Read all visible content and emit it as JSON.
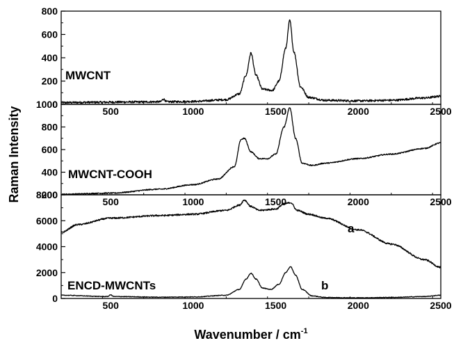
{
  "chart_data": {
    "type": "line",
    "xlabel": "Wavenumber / cm",
    "xlabel_superscript": "-1",
    "ylabel": "Raman Intensity",
    "xlim": [
      200,
      2500
    ],
    "x_ticks": [
      500,
      1000,
      1500,
      2000,
      2500
    ],
    "x_tick_labels": [
      "500",
      "1000",
      "1500",
      "2000",
      "2500"
    ],
    "grid": false,
    "panels": [
      {
        "label": "MWCNT",
        "ylim": [
          0,
          800
        ],
        "y_ticks": [
          0,
          200,
          400,
          600,
          800
        ],
        "y_tick_labels": [
          "0",
          "200",
          "400",
          "600",
          "800"
        ],
        "series": [
          {
            "x": [
              200,
              400,
              600,
              800,
              820,
              840,
              1000,
              1200,
              1280,
              1320,
              1350,
              1380,
              1420,
              1480,
              1520,
              1560,
              1585,
              1610,
              1650,
              1700,
              1800,
              2000,
              2200,
              2400,
              2500
            ],
            "values": [
              15,
              18,
              20,
              22,
              45,
              22,
              25,
              40,
              90,
              250,
              440,
              250,
              130,
              120,
              200,
              480,
              720,
              450,
              150,
              60,
              35,
              30,
              35,
              55,
              70
            ]
          }
        ]
      },
      {
        "label": "MWCNT-COOH",
        "ylim": [
          200,
          1000
        ],
        "y_ticks": [
          200,
          400,
          600,
          800,
          1000
        ],
        "y_tick_labels": [
          "200",
          "400",
          "600",
          "800",
          "1000"
        ],
        "series": [
          {
            "x": [
              200,
              500,
              800,
              1000,
              1150,
              1250,
              1290,
              1310,
              1350,
              1400,
              1450,
              1500,
              1550,
              1585,
              1620,
              1660,
              1720,
              1800,
              2000,
              2200,
              2400,
              2500
            ],
            "values": [
              205,
              215,
              250,
              290,
              340,
              450,
              690,
              700,
              580,
              520,
              520,
              560,
              800,
              970,
              700,
              480,
              460,
              480,
              520,
              560,
              610,
              660
            ]
          }
        ]
      },
      {
        "label": "ENCD-MWCNTs",
        "ylim": [
          0,
          8000
        ],
        "y_ticks": [
          0,
          2000,
          4000,
          6000,
          8000
        ],
        "y_tick_labels": [
          "0",
          "2000",
          "4000",
          "6000",
          "8000"
        ],
        "series": [
          {
            "name": "a",
            "x": [
              200,
              300,
              500,
              800,
              1000,
              1200,
              1280,
              1310,
              1350,
              1400,
              1500,
              1550,
              1590,
              1630,
              1700,
              1800,
              2000,
              2200,
              2400,
              2500
            ],
            "values": [
              5100,
              5700,
              6200,
              6400,
              6500,
              6800,
              7200,
              7600,
              7100,
              6800,
              6900,
              7300,
              7400,
              6800,
              6500,
              6200,
              5300,
              4200,
              3000,
              2400
            ]
          },
          {
            "name": "b",
            "x": [
              200,
              480,
              500,
              520,
              800,
              1000,
              1200,
              1280,
              1320,
              1350,
              1380,
              1420,
              1470,
              1520,
              1560,
              1590,
              1620,
              1660,
              1720,
              1800,
              2000,
              2200,
              2400,
              2500
            ],
            "values": [
              250,
              150,
              280,
              150,
              100,
              120,
              250,
              700,
              1500,
              1950,
              1500,
              800,
              700,
              1100,
              2000,
              2450,
              1800,
              700,
              200,
              80,
              50,
              80,
              150,
              250
            ]
          }
        ]
      }
    ]
  }
}
